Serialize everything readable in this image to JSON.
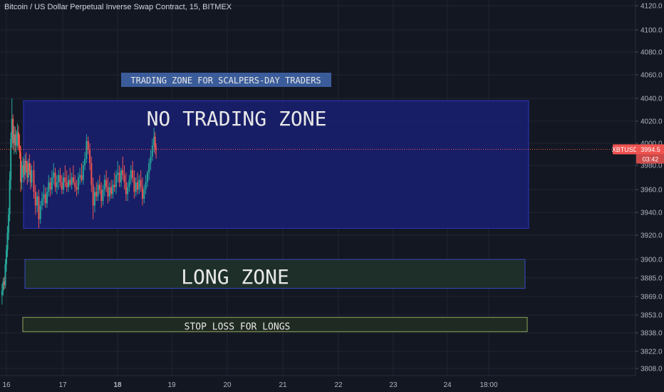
{
  "header": {
    "title": "Bitcoin / US Dollar Perpetual Inverse Swap Contract, 15, BITMEX"
  },
  "colors": {
    "background": "#131722",
    "grid": "#1f2433",
    "up_candle": "#26a69a",
    "down_candle": "#ef5350",
    "price_line": "#ef5350",
    "no_trading_fill": "#1a1f6e",
    "no_trading_border": "#2a35c0",
    "long_fill": "#1e2f2a",
    "long_border": "#3a48c0",
    "stop_border": "#8fa35a",
    "label_box": "#3b5c9a"
  },
  "chart_data": {
    "type": "candlestick",
    "title": "Bitcoin / US Dollar Perpetual Inverse Swap Contract, 15, BITMEX",
    "symbol": "XBTUSD",
    "interval": "15",
    "exchange": "BITMEX",
    "x_ticks": [
      "16",
      "17",
      "18",
      "19",
      "20",
      "21",
      "22",
      "23",
      "24",
      "18:00"
    ],
    "y_ticks": [
      4120.0,
      4100.0,
      4080.0,
      4060.0,
      4040.0,
      4020.0,
      4000.0,
      3980.0,
      3960.0,
      3940.0,
      3920.0,
      3900.0,
      3885.0,
      3869.0,
      3853.0,
      3838.0,
      3822.0,
      3808.0
    ],
    "y_tick_labels": [
      "4120.0",
      "4100.0",
      "4080.0",
      "4060.0",
      "4040.0",
      "4020.0",
      "4000.0",
      "3980.0",
      "3960.0",
      "3940.0",
      "3920.0",
      "3900.0",
      "3885.0",
      "3869.0",
      "3853.0",
      "3838.0",
      "3822.0",
      "3808.0"
    ],
    "ylim": [
      3800,
      4128
    ],
    "grid": true,
    "price_line": {
      "price": 3994.5,
      "label": "XBTUSD",
      "value_label": "3994.5",
      "countdown": "03:42"
    },
    "candles": [
      [
        15.92,
        3870,
        3880,
        3862,
        3874
      ],
      [
        15.94,
        3874,
        3885,
        3870,
        3882
      ],
      [
        15.96,
        3882,
        3886,
        3875,
        3879
      ],
      [
        15.98,
        3879,
        3900,
        3876,
        3896
      ],
      [
        16.0,
        3896,
        3912,
        3890,
        3908
      ],
      [
        16.02,
        3908,
        3928,
        3902,
        3922
      ],
      [
        16.04,
        3922,
        3944,
        3916,
        3938
      ],
      [
        16.06,
        3938,
        3975,
        3932,
        3968
      ],
      [
        16.08,
        3968,
        4010,
        3960,
        4004
      ],
      [
        16.1,
        4004,
        4040,
        3996,
        4022
      ],
      [
        16.12,
        4022,
        4026,
        3994,
        4000
      ],
      [
        16.14,
        4000,
        4016,
        3990,
        4008
      ],
      [
        16.16,
        4008,
        4015,
        3992,
        3998
      ],
      [
        16.18,
        3998,
        4012,
        3990,
        4004
      ],
      [
        16.2,
        4004,
        4018,
        3996,
        4010
      ],
      [
        16.22,
        4010,
        4016,
        3994,
        3998
      ],
      [
        16.24,
        3998,
        4008,
        3986,
        3992
      ],
      [
        16.26,
        3992,
        3998,
        3958,
        3966
      ],
      [
        16.28,
        3966,
        3984,
        3960,
        3978
      ],
      [
        16.3,
        3978,
        3988,
        3970,
        3980
      ],
      [
        16.32,
        3980,
        3986,
        3966,
        3972
      ],
      [
        16.34,
        3972,
        3990,
        3968,
        3984
      ],
      [
        16.36,
        3984,
        3992,
        3974,
        3978
      ],
      [
        16.38,
        3978,
        3984,
        3964,
        3970
      ],
      [
        16.4,
        3970,
        3986,
        3966,
        3982
      ],
      [
        16.42,
        3982,
        3990,
        3972,
        3976
      ],
      [
        16.44,
        3976,
        3982,
        3960,
        3966
      ],
      [
        16.46,
        3966,
        3980,
        3962,
        3976
      ],
      [
        16.5,
        3976,
        3984,
        3952,
        3958
      ],
      [
        16.53,
        3958,
        3964,
        3938,
        3946
      ],
      [
        16.56,
        3946,
        3958,
        3940,
        3954
      ],
      [
        16.59,
        3954,
        3960,
        3926,
        3934
      ],
      [
        16.62,
        3934,
        3950,
        3930,
        3946
      ],
      [
        16.65,
        3946,
        3958,
        3942,
        3952
      ],
      [
        16.68,
        3952,
        3964,
        3946,
        3956
      ],
      [
        16.71,
        3956,
        3962,
        3944,
        3948
      ],
      [
        16.74,
        3948,
        3962,
        3944,
        3958
      ],
      [
        16.77,
        3958,
        3972,
        3954,
        3966
      ],
      [
        16.8,
        3966,
        3970,
        3954,
        3960
      ],
      [
        16.83,
        3960,
        3976,
        3956,
        3970
      ],
      [
        16.86,
        3970,
        3982,
        3964,
        3974
      ],
      [
        16.89,
        3974,
        3978,
        3958,
        3962
      ],
      [
        16.92,
        3962,
        3972,
        3956,
        3966
      ],
      [
        16.95,
        3966,
        3976,
        3960,
        3972
      ],
      [
        16.98,
        3972,
        3978,
        3962,
        3966
      ],
      [
        17.01,
        3966,
        3972,
        3956,
        3960
      ],
      [
        17.04,
        3960,
        3974,
        3956,
        3970
      ],
      [
        17.07,
        3970,
        3980,
        3962,
        3966
      ],
      [
        17.1,
        3966,
        3976,
        3958,
        3962
      ],
      [
        17.13,
        3962,
        3972,
        3958,
        3968
      ],
      [
        17.16,
        3968,
        3978,
        3962,
        3964
      ],
      [
        17.19,
        3964,
        3974,
        3960,
        3970
      ],
      [
        17.22,
        3970,
        3980,
        3964,
        3966
      ],
      [
        17.25,
        3966,
        3972,
        3958,
        3962
      ],
      [
        17.28,
        3962,
        3968,
        3954,
        3960
      ],
      [
        17.31,
        3960,
        3974,
        3956,
        3970
      ],
      [
        17.34,
        3970,
        3978,
        3964,
        3972
      ],
      [
        17.37,
        3972,
        3982,
        3966,
        3968
      ],
      [
        17.4,
        3968,
        3984,
        3964,
        3980
      ],
      [
        17.43,
        3980,
        3992,
        3976,
        3986
      ],
      [
        17.46,
        3986,
        4008,
        3982,
        4002
      ],
      [
        17.49,
        4002,
        4006,
        3990,
        3994
      ],
      [
        17.52,
        3994,
        4000,
        3976,
        3982
      ],
      [
        17.55,
        3982,
        3988,
        3958,
        3964
      ],
      [
        17.58,
        3964,
        3970,
        3934,
        3946
      ],
      [
        17.61,
        3946,
        3962,
        3940,
        3958
      ],
      [
        17.64,
        3958,
        3966,
        3950,
        3954
      ],
      [
        17.67,
        3954,
        3968,
        3950,
        3964
      ],
      [
        17.7,
        3964,
        3972,
        3956,
        3960
      ],
      [
        17.73,
        3960,
        3966,
        3944,
        3950
      ],
      [
        17.76,
        3950,
        3964,
        3946,
        3960
      ],
      [
        17.79,
        3960,
        3972,
        3954,
        3968
      ],
      [
        17.82,
        3968,
        3976,
        3958,
        3962
      ],
      [
        17.85,
        3962,
        3970,
        3948,
        3954
      ],
      [
        17.88,
        3954,
        3966,
        3950,
        3962
      ],
      [
        17.91,
        3962,
        3968,
        3952,
        3956
      ],
      [
        17.94,
        3956,
        3968,
        3952,
        3964
      ],
      [
        17.97,
        3964,
        3974,
        3958,
        3962
      ],
      [
        18.0,
        3962,
        3976,
        3956,
        3972
      ],
      [
        18.03,
        3972,
        3984,
        3966,
        3974
      ],
      [
        18.06,
        3974,
        3980,
        3962,
        3966
      ],
      [
        18.09,
        3966,
        3978,
        3962,
        3976
      ],
      [
        18.12,
        3976,
        3988,
        3968,
        3972
      ],
      [
        18.15,
        3972,
        3980,
        3960,
        3966
      ],
      [
        18.18,
        3966,
        3974,
        3950,
        3956
      ],
      [
        18.21,
        3956,
        3966,
        3950,
        3962
      ],
      [
        18.24,
        3962,
        3972,
        3958,
        3968
      ],
      [
        18.27,
        3968,
        3980,
        3964,
        3976
      ],
      [
        18.3,
        3976,
        3984,
        3966,
        3970
      ],
      [
        18.33,
        3970,
        3976,
        3952,
        3958
      ],
      [
        18.36,
        3958,
        3970,
        3954,
        3966
      ],
      [
        18.39,
        3966,
        3974,
        3956,
        3960
      ],
      [
        18.42,
        3960,
        3972,
        3956,
        3968
      ],
      [
        18.45,
        3968,
        3976,
        3958,
        3962
      ],
      [
        18.48,
        3962,
        3970,
        3946,
        3952
      ],
      [
        18.51,
        3952,
        3964,
        3948,
        3960
      ],
      [
        18.54,
        3960,
        3972,
        3956,
        3966
      ],
      [
        18.57,
        3966,
        3976,
        3962,
        3974
      ],
      [
        18.6,
        3974,
        3986,
        3968,
        3982
      ],
      [
        18.63,
        3982,
        3994,
        3976,
        3988
      ],
      [
        18.66,
        3988,
        4004,
        3984,
        3998
      ],
      [
        18.69,
        3998,
        4014,
        3992,
        4006
      ],
      [
        18.71,
        4006,
        4010,
        3990,
        3996
      ],
      [
        18.73,
        3996,
        4000,
        3986,
        3994
      ]
    ],
    "zones": [
      {
        "name": "trading-zone-label",
        "text": "TRADING ZONE FOR SCALPERS-DAY TRADERS"
      },
      {
        "name": "no-trading-zone",
        "text": "NO TRADING ZONE",
        "top": 4038,
        "bottom": 3926
      },
      {
        "name": "long-zone",
        "text": "LONG ZONE",
        "top": 3900,
        "bottom": 3876
      },
      {
        "name": "stop-loss-zone",
        "text": "STOP LOSS FOR LONGS",
        "top": 3851,
        "bottom": 3839
      }
    ]
  }
}
